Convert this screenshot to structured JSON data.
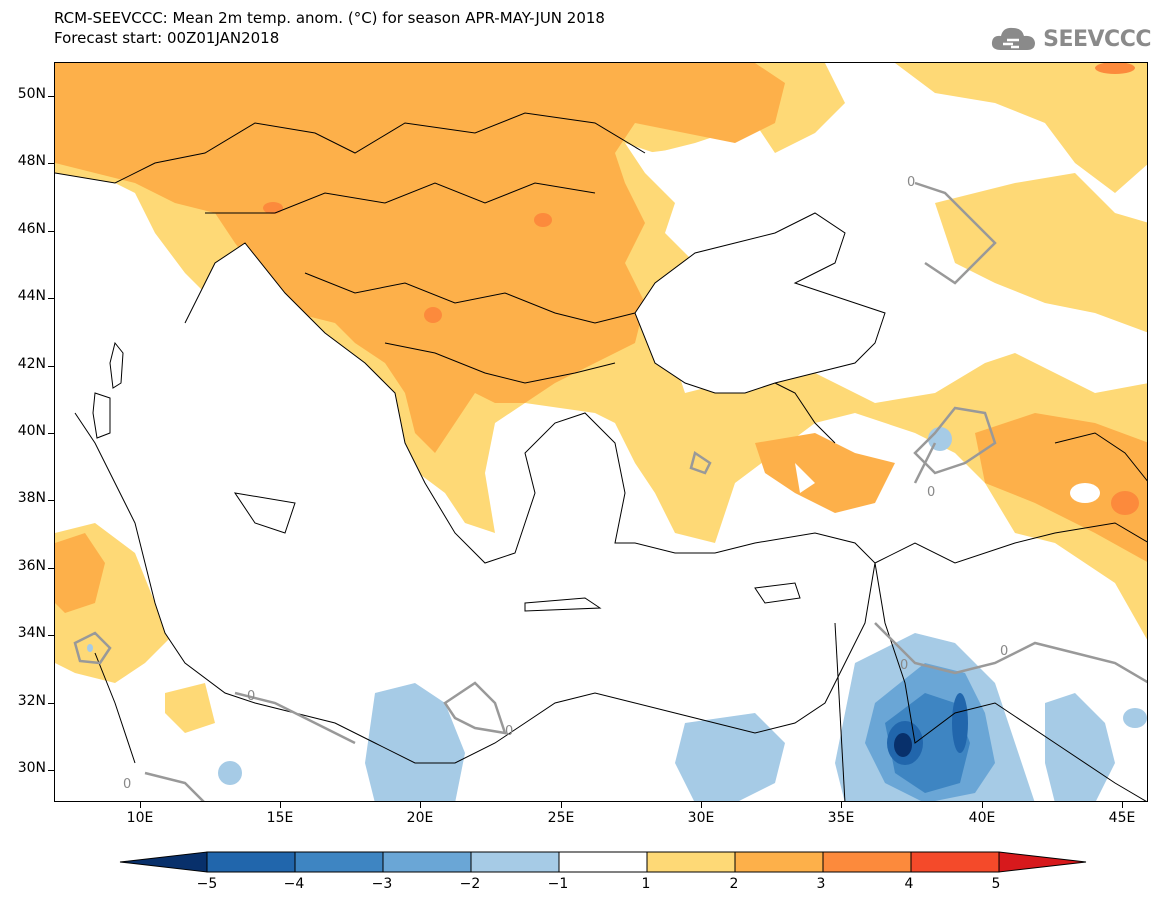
{
  "header": {
    "title_line1": "RCM-SEEVCCC: Mean 2m temp. anom. (°C) for season APR-MAY-JUN 2018",
    "title_line2": "Forecast start: 00Z01JAN2018",
    "logo_text": "SEEVCCC"
  },
  "map": {
    "lat_labels": [
      "50N",
      "48N",
      "46N",
      "44N",
      "42N",
      "40N",
      "38N",
      "36N",
      "34N",
      "32N",
      "30N"
    ],
    "lon_labels": [
      "10E",
      "15E",
      "20E",
      "25E",
      "30E",
      "35E",
      "40E",
      "45E"
    ],
    "contour_labels": [
      "0",
      "0",
      "0",
      "0",
      "0",
      "0",
      "0"
    ]
  },
  "colorbar": {
    "labels": [
      "−5",
      "−4",
      "−3",
      "−2",
      "−1",
      "1",
      "2",
      "3",
      "4",
      "5"
    ],
    "colors": [
      "#08306b",
      "#2166ac",
      "#3e85c2",
      "#6aa6d6",
      "#a6cbe6",
      "#ffffff",
      "#fed976",
      "#fdb04a",
      "#fc8a3c",
      "#f44a2a",
      "#d7191c"
    ]
  },
  "colors": {
    "warm1": "#fed976",
    "warm2": "#fdb04a",
    "warm3": "#fc8a3c",
    "warm4": "#f44a2a",
    "cool1": "#a6cbe6",
    "cool2": "#6aa6d6",
    "cool3": "#3e85c2",
    "cool4": "#2166ac",
    "contour": "#999999"
  }
}
